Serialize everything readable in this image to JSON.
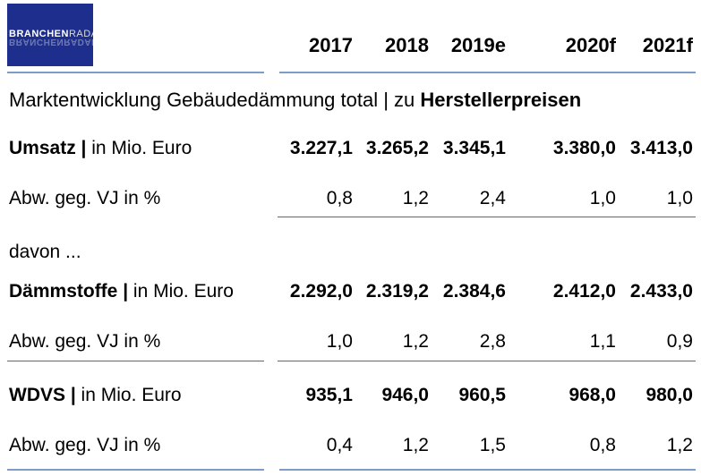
{
  "logo": {
    "part1": "BRANCHEN",
    "part2": "RADAR"
  },
  "columns": [
    "2017",
    "2018",
    "2019e",
    "2020f",
    "2021f"
  ],
  "section_title": {
    "prefix": "Marktentwicklung Gebäudedämmung total | zu ",
    "bold": "Herstellerpreisen"
  },
  "davon": "davon ...",
  "rows": [
    {
      "label_bold": "Umsatz |",
      "label_rest": " in Mio. Euro",
      "values": [
        "3.227,1",
        "3.265,2",
        "3.345,1",
        "3.380,0",
        "3.413,0"
      ]
    },
    {
      "label": "Abw. geg. VJ in %",
      "values": [
        "0,8",
        "1,2",
        "2,4",
        "1,0",
        "1,0"
      ]
    },
    {
      "label_bold": "Dämmstoffe |",
      "label_rest": " in Mio. Euro",
      "values": [
        "2.292,0",
        "2.319,2",
        "2.384,6",
        "2.412,0",
        "2.433,0"
      ]
    },
    {
      "label": "Abw. geg. VJ in %",
      "values": [
        "1,0",
        "1,2",
        "2,8",
        "1,1",
        "0,9"
      ]
    },
    {
      "label_bold": "WDVS |",
      "label_rest": " in Mio. Euro",
      "values": [
        "935,1",
        "946,0",
        "960,5",
        "968,0",
        "980,0"
      ]
    },
    {
      "label": "Abw. geg. VJ in %",
      "values": [
        "0,4",
        "1,2",
        "1,5",
        "0,8",
        "1,2"
      ]
    }
  ]
}
